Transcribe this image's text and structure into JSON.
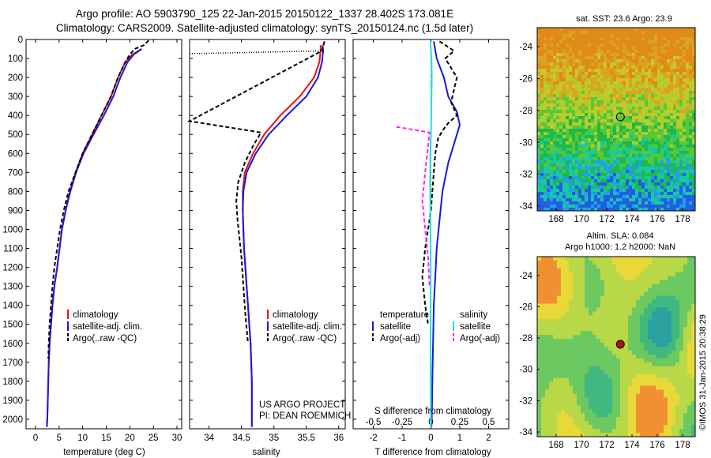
{
  "header": {
    "line1": "Argo profile: AO 5903790_125 22-Jan-2015 20150122_1337 28.402S 173.081E",
    "line2": "Climatology: CARS2009. Satellite-adjusted climatology: synTS_20150124.nc (1.5d later)"
  },
  "colors": {
    "climatology": "#e41010",
    "satellite": "#1818d8",
    "argo": "#000000",
    "satellite_s": "#20e0e0",
    "argo_s": "#ff20ff"
  },
  "chart_data": [
    {
      "type": "line",
      "xlabel": "temperature (deg C)",
      "ylabel": "",
      "xlim": [
        -2,
        31
      ],
      "ylim": [
        2050,
        0
      ],
      "xticks": [
        "0",
        "5",
        "10",
        "15",
        "20",
        "25",
        "30"
      ],
      "yticks": [
        "0",
        "100",
        "200",
        "300",
        "400",
        "500",
        "600",
        "700",
        "800",
        "900",
        "1000",
        "1100",
        "1200",
        "1300",
        "1400",
        "1500",
        "1600",
        "1700",
        "1800",
        "1900",
        "2000"
      ],
      "legend": [
        "climatology",
        "satellite-adj. clim.",
        "Argo(..raw -QC)"
      ],
      "legend_loc": "lower-center",
      "series": [
        {
          "name": "climatology",
          "x": [
            22.5,
            20.5,
            19.0,
            17.5,
            16.0,
            14.0,
            12.0,
            10.0,
            8.5,
            7.3,
            6.4,
            5.6,
            5.1,
            4.6,
            4.0,
            3.6,
            3.3,
            3.0,
            2.8,
            2.7,
            2.6,
            2.5,
            2.4
          ],
          "y": [
            50,
            80,
            120,
            200,
            300,
            400,
            500,
            600,
            700,
            800,
            900,
            1000,
            1100,
            1200,
            1300,
            1400,
            1500,
            1600,
            1700,
            1800,
            1900,
            2000,
            2040
          ]
        },
        {
          "name": "satellite-adj. clim.",
          "x": [
            22.5,
            20.8,
            19.5,
            18.0,
            16.5,
            14.5,
            12.3,
            10.2,
            8.6,
            7.4,
            6.4,
            5.6,
            5.1,
            4.6,
            4.0,
            3.6,
            3.3,
            3.0,
            2.8,
            2.7,
            2.6,
            2.5,
            2.4
          ],
          "y": [
            50,
            80,
            120,
            200,
            300,
            400,
            500,
            600,
            700,
            800,
            900,
            1000,
            1100,
            1200,
            1300,
            1400,
            1500,
            1600,
            1700,
            1800,
            1900,
            2000,
            2040
          ]
        },
        {
          "name": "Argo(..raw -QC)",
          "x": [
            24.0,
            23.0,
            21.0,
            20.0,
            19.0,
            17.5,
            16.0,
            14.0,
            12.0,
            10.0,
            8.5,
            7.0,
            6.0,
            5.2,
            4.6,
            4.0,
            3.6,
            3.3,
            3.0,
            2.8,
            2.7
          ],
          "y": [
            5,
            30,
            50,
            80,
            120,
            200,
            300,
            400,
            500,
            600,
            700,
            800,
            900,
            1000,
            1100,
            1200,
            1300,
            1400,
            1500,
            1600,
            1680
          ]
        }
      ],
      "annotation": ""
    },
    {
      "type": "line",
      "xlabel": "salinity",
      "xlim": [
        33.7,
        36.1
      ],
      "ylim": [
        2050,
        0
      ],
      "xticks": [
        "34",
        "34.5",
        "35",
        "35.5",
        "36"
      ],
      "legend": [
        "climatology",
        "satellite-adj. clim.",
        "Argo(..raw -QC)"
      ],
      "series": [
        {
          "name": "climatology",
          "x": [
            35.72,
            35.72,
            35.7,
            35.62,
            35.4,
            35.1,
            34.85,
            34.68,
            34.55,
            34.52,
            34.52,
            34.53,
            34.54,
            34.56,
            34.58,
            34.6,
            34.62,
            34.64,
            34.65,
            34.66,
            34.66
          ],
          "y": [
            30,
            60,
            120,
            200,
            300,
            400,
            500,
            600,
            700,
            800,
            900,
            1000,
            1100,
            1200,
            1300,
            1400,
            1500,
            1600,
            1700,
            1800,
            2040
          ]
        },
        {
          "name": "satellite-adj. clim.",
          "x": [
            35.75,
            35.76,
            35.74,
            35.68,
            35.5,
            35.2,
            34.92,
            34.72,
            34.58,
            34.53,
            34.52,
            34.53,
            34.54,
            34.56,
            34.58,
            34.6,
            34.62,
            34.64,
            34.65,
            34.66,
            34.66
          ],
          "y": [
            30,
            60,
            120,
            200,
            300,
            400,
            500,
            600,
            700,
            800,
            900,
            1000,
            1100,
            1200,
            1300,
            1400,
            1500,
            1600,
            1700,
            1800,
            2040
          ]
        },
        {
          "name": "Argo(..raw -QC)",
          "x": [
            35.78,
            35.74,
            33.7,
            34.8,
            34.68,
            34.55,
            34.45,
            34.42,
            34.44,
            34.47,
            34.5,
            34.53,
            34.56,
            34.6
          ],
          "y": [
            10,
            60,
            430,
            490,
            560,
            650,
            750,
            850,
            950,
            1050,
            1150,
            1300,
            1450,
            1600
          ]
        },
        {
          "name": "Argo surface",
          "x": [
            33.7,
            35.78
          ],
          "y": [
            75,
            60
          ]
        }
      ],
      "annotation_lines": [
        "US ARGO PROJECT",
        "PI: DEAN ROEMMICH"
      ]
    },
    {
      "type": "line",
      "xlabel": "T difference from climatology",
      "xlabel2": "S difference from climatology",
      "xlim": [
        -2.7,
        2.7
      ],
      "ylim": [
        2050,
        0
      ],
      "xticks": [
        "-2",
        "-1",
        "0",
        "1",
        "2"
      ],
      "xticks2": [
        "-0.5",
        "-0.25",
        "0",
        "0.25",
        "0.5"
      ],
      "legend_title_t": "temperature",
      "legend_title_s": "salinity",
      "legend": [
        "satellite",
        "Argo(-adj)",
        "satellite",
        "Argo(-adj)"
      ],
      "series": [
        {
          "name": "T satellite",
          "x": [
            0.1,
            0.2,
            0.45,
            0.6,
            0.9,
            1.0,
            0.8,
            0.6,
            0.4,
            0.3,
            0.2,
            0.15,
            0.1,
            0.08,
            0.06,
            0.05,
            0.04,
            0.03,
            0.02,
            0.02
          ],
          "y": [
            10,
            100,
            200,
            300,
            380,
            450,
            550,
            650,
            800,
            950,
            1100,
            1250,
            1400,
            1550,
            1700,
            1800,
            1900,
            1980,
            2020,
            2040
          ]
        },
        {
          "name": "T Argo(-adj)",
          "x": [
            0.3,
            0.8,
            0.5,
            0.9,
            0.7,
            0.9,
            0.6,
            0.4,
            0.25,
            0.15,
            0.1,
            0.05,
            0.0,
            -0.1,
            -0.2,
            -0.3,
            -0.2,
            -0.1
          ],
          "y": [
            10,
            60,
            100,
            200,
            330,
            400,
            440,
            480,
            520,
            600,
            700,
            800,
            900,
            1000,
            1100,
            1250,
            1400,
            1500
          ]
        },
        {
          "name": "S satellite",
          "x": [
            -0.02,
            0.02,
            0.03,
            0.02,
            0.01,
            0.0,
            -0.02,
            -0.03,
            -0.02,
            -0.01,
            -0.01,
            -0.01,
            0.0
          ],
          "y": [
            10,
            100,
            200,
            300,
            400,
            500,
            600,
            750,
            900,
            1100,
            1400,
            1700,
            2040
          ]
        },
        {
          "name": "S Argo(-adj)",
          "x": [
            -1.2,
            -0.05,
            -0.1,
            -0.2,
            -0.3,
            -0.2,
            -0.1,
            -0.05
          ],
          "y": [
            460,
            490,
            560,
            700,
            850,
            1000,
            1150,
            1300
          ]
        }
      ]
    },
    {
      "type": "heatmap",
      "title": "sat. SST: 23.6 Argo: 23.9",
      "xticks": [
        "168",
        "170",
        "172",
        "174",
        "176",
        "178"
      ],
      "yticks": [
        "-24",
        "-26",
        "-28",
        "-30",
        "-32",
        "-34"
      ],
      "marker": [
        173.08,
        -28.4
      ]
    },
    {
      "type": "heatmap",
      "title_line1": "Altim. SLA: 0.084",
      "title_line2": "Argo h1000: 1.2 h2000: NaN",
      "xticks": [
        "168",
        "170",
        "172",
        "174",
        "176",
        "178"
      ],
      "yticks": [
        "-24",
        "-26",
        "-28",
        "-30",
        "-32",
        "-34"
      ],
      "marker": [
        173.08,
        -28.4
      ]
    }
  ],
  "footer": {
    "stamp": "©IMOS 31-Jan-2015 20:38:29"
  }
}
